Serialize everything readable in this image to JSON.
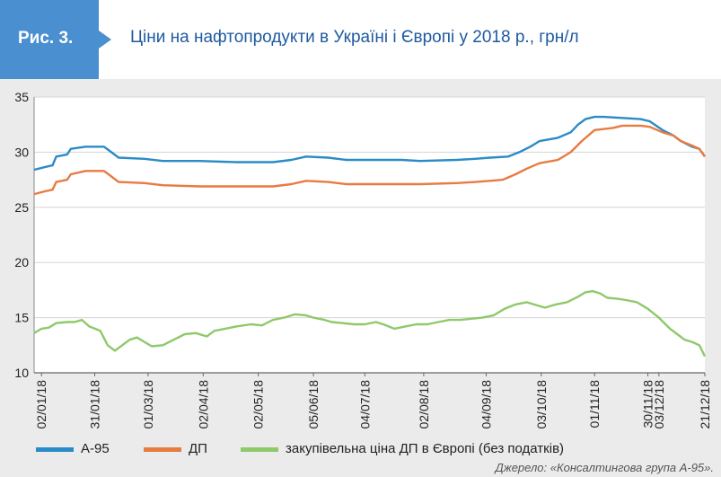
{
  "header": {
    "figure_label": "Рис. 3.",
    "title": "Ціни на нафтопродукти в Україні і Європі у 2018 р., грн/л",
    "badge_color": "#4a8fd0",
    "title_color": "#1e5aa0"
  },
  "source": "Джерело: «Консалтингова група А-95».",
  "chart_data": {
    "type": "line",
    "title": "Ціни на нафтопродукти в Україні і Європі у 2018 р., грн/л",
    "xlabel": "",
    "ylabel": "",
    "ylim": [
      10,
      35
    ],
    "yticks": [
      10,
      15,
      20,
      25,
      30,
      35
    ],
    "x_range": [
      0,
      353
    ],
    "x_ticks": [
      {
        "day": 0,
        "label": "02/01/18"
      },
      {
        "day": 29,
        "label": "31/01/18"
      },
      {
        "day": 58,
        "label": "01/03/18"
      },
      {
        "day": 88,
        "label": "02/04/18"
      },
      {
        "day": 118,
        "label": "02/05/18"
      },
      {
        "day": 148,
        "label": "05/06/18"
      },
      {
        "day": 176,
        "label": "04/07/18"
      },
      {
        "day": 210,
        "label": "02/08/18"
      },
      {
        "day": 244,
        "label": "04/09/18"
      },
      {
        "day": 274,
        "label": "03/10/18"
      },
      {
        "day": 303,
        "label": "01/11/18"
      },
      {
        "day": 332,
        "label": "30/11/18"
      },
      {
        "day": 335,
        "label": "03/12/18"
      },
      {
        "day": 353,
        "label": "21/12/18"
      }
    ],
    "grid": true,
    "legend_position": "bottom",
    "series": [
      {
        "name": "А-95",
        "color": "#2a8bc7",
        "points": [
          [
            0,
            28.4
          ],
          [
            7,
            28.7
          ],
          [
            10,
            28.8
          ],
          [
            12,
            29.6
          ],
          [
            18,
            29.8
          ],
          [
            20,
            30.3
          ],
          [
            28,
            30.5
          ],
          [
            38,
            30.5
          ],
          [
            42,
            30.0
          ],
          [
            46,
            29.5
          ],
          [
            60,
            29.4
          ],
          [
            70,
            29.2
          ],
          [
            90,
            29.2
          ],
          [
            110,
            29.1
          ],
          [
            130,
            29.1
          ],
          [
            140,
            29.3
          ],
          [
            148,
            29.6
          ],
          [
            160,
            29.5
          ],
          [
            170,
            29.3
          ],
          [
            200,
            29.3
          ],
          [
            210,
            29.2
          ],
          [
            230,
            29.3
          ],
          [
            240,
            29.4
          ],
          [
            248,
            29.5
          ],
          [
            258,
            29.6
          ],
          [
            264,
            30.0
          ],
          [
            270,
            30.5
          ],
          [
            275,
            31.0
          ],
          [
            285,
            31.3
          ],
          [
            292,
            31.8
          ],
          [
            296,
            32.5
          ],
          [
            300,
            33.0
          ],
          [
            305,
            33.2
          ],
          [
            310,
            33.2
          ],
          [
            320,
            33.1
          ],
          [
            330,
            33.0
          ],
          [
            335,
            32.8
          ],
          [
            342,
            32.0
          ],
          [
            348,
            31.5
          ],
          [
            352,
            31.0
          ],
          [
            358,
            30.5
          ],
          [
            362,
            30.3
          ],
          [
            365,
            29.6
          ]
        ]
      },
      {
        "name": "ДП",
        "color": "#e87b41",
        "points": [
          [
            0,
            26.2
          ],
          [
            7,
            26.5
          ],
          [
            10,
            26.6
          ],
          [
            12,
            27.3
          ],
          [
            18,
            27.5
          ],
          [
            20,
            28.0
          ],
          [
            28,
            28.3
          ],
          [
            38,
            28.3
          ],
          [
            42,
            27.8
          ],
          [
            46,
            27.3
          ],
          [
            60,
            27.2
          ],
          [
            70,
            27.0
          ],
          [
            90,
            26.9
          ],
          [
            110,
            26.9
          ],
          [
            130,
            26.9
          ],
          [
            140,
            27.1
          ],
          [
            148,
            27.4
          ],
          [
            160,
            27.3
          ],
          [
            170,
            27.1
          ],
          [
            200,
            27.1
          ],
          [
            210,
            27.1
          ],
          [
            230,
            27.2
          ],
          [
            240,
            27.3
          ],
          [
            248,
            27.4
          ],
          [
            255,
            27.5
          ],
          [
            262,
            28.0
          ],
          [
            268,
            28.5
          ],
          [
            275,
            29.0
          ],
          [
            285,
            29.3
          ],
          [
            292,
            30.0
          ],
          [
            298,
            31.0
          ],
          [
            305,
            32.0
          ],
          [
            315,
            32.2
          ],
          [
            320,
            32.4
          ],
          [
            330,
            32.4
          ],
          [
            335,
            32.3
          ],
          [
            342,
            31.8
          ],
          [
            348,
            31.5
          ],
          [
            352,
            31.0
          ],
          [
            358,
            30.6
          ],
          [
            362,
            30.3
          ],
          [
            365,
            29.6
          ]
        ]
      },
      {
        "name": "закупівельна ціна ДП в Європі (без податків)",
        "color": "#8ec96a",
        "points": [
          [
            0,
            13.6
          ],
          [
            4,
            14.0
          ],
          [
            8,
            14.1
          ],
          [
            12,
            14.5
          ],
          [
            18,
            14.6
          ],
          [
            22,
            14.6
          ],
          [
            26,
            14.8
          ],
          [
            30,
            14.2
          ],
          [
            36,
            13.8
          ],
          [
            40,
            12.5
          ],
          [
            44,
            12.0
          ],
          [
            48,
            12.5
          ],
          [
            52,
            13.0
          ],
          [
            56,
            13.2
          ],
          [
            60,
            12.8
          ],
          [
            64,
            12.4
          ],
          [
            70,
            12.5
          ],
          [
            76,
            13.0
          ],
          [
            82,
            13.5
          ],
          [
            88,
            13.6
          ],
          [
            94,
            13.3
          ],
          [
            98,
            13.8
          ],
          [
            104,
            14.0
          ],
          [
            110,
            14.2
          ],
          [
            118,
            14.4
          ],
          [
            124,
            14.3
          ],
          [
            130,
            14.8
          ],
          [
            136,
            15.0
          ],
          [
            142,
            15.3
          ],
          [
            148,
            15.2
          ],
          [
            152,
            15.0
          ],
          [
            158,
            14.8
          ],
          [
            162,
            14.6
          ],
          [
            168,
            14.5
          ],
          [
            174,
            14.4
          ],
          [
            180,
            14.4
          ],
          [
            186,
            14.6
          ],
          [
            190,
            14.4
          ],
          [
            196,
            14.0
          ],
          [
            202,
            14.2
          ],
          [
            208,
            14.4
          ],
          [
            214,
            14.4
          ],
          [
            220,
            14.6
          ],
          [
            226,
            14.8
          ],
          [
            232,
            14.8
          ],
          [
            238,
            14.9
          ],
          [
            244,
            15.0
          ],
          [
            250,
            15.2
          ],
          [
            256,
            15.8
          ],
          [
            262,
            16.2
          ],
          [
            268,
            16.4
          ],
          [
            272,
            16.2
          ],
          [
            278,
            15.9
          ],
          [
            284,
            16.2
          ],
          [
            290,
            16.4
          ],
          [
            296,
            16.9
          ],
          [
            300,
            17.3
          ],
          [
            304,
            17.4
          ],
          [
            308,
            17.2
          ],
          [
            312,
            16.8
          ],
          [
            318,
            16.7
          ],
          [
            322,
            16.6
          ],
          [
            328,
            16.4
          ],
          [
            334,
            15.8
          ],
          [
            340,
            15.0
          ],
          [
            346,
            14.0
          ],
          [
            350,
            13.5
          ],
          [
            354,
            13.0
          ],
          [
            358,
            12.8
          ],
          [
            362,
            12.5
          ],
          [
            365,
            11.5
          ]
        ]
      }
    ]
  }
}
